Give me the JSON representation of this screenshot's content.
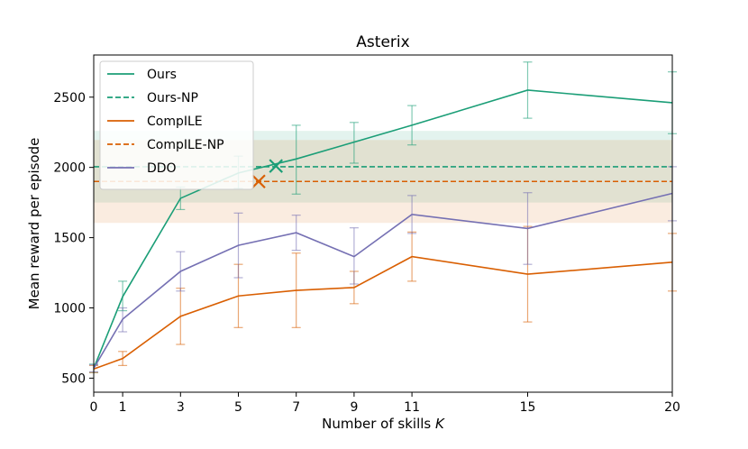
{
  "chart_data": {
    "type": "line",
    "title": "Asterix",
    "xlabel": "Number of skills K",
    "ylabel": "Mean reward per episode",
    "x": [
      0,
      1,
      3,
      5,
      7,
      9,
      11,
      15,
      20
    ],
    "xlim": [
      0,
      20
    ],
    "ylim": [
      400,
      2800
    ],
    "x_ticks": [
      "0",
      "1",
      "3",
      "5",
      "7",
      "9",
      "11",
      "15",
      "20"
    ],
    "y_ticks": [
      "500",
      "1000",
      "1500",
      "2000",
      "2500"
    ],
    "y_tick_values": [
      500,
      1000,
      1500,
      2000,
      2500
    ],
    "grid": false,
    "legend_position": "top-left",
    "series": [
      {
        "name": "Ours",
        "color": "#1b9e77",
        "style": "solid",
        "values": [
          570,
          1080,
          1780,
          1960,
          2060,
          2180,
          2300,
          2550,
          2460
        ],
        "err_low": [
          540,
          980,
          1700,
          1850,
          1810,
          2030,
          2160,
          2350,
          2240
        ],
        "err_high": [
          600,
          1190,
          1860,
          2080,
          2300,
          2320,
          2440,
          2750,
          2680
        ]
      },
      {
        "name": "Ours-NP",
        "color": "#1b9e77",
        "style": "dashed",
        "constant": 2005,
        "band": [
          1750,
          2260
        ],
        "marker_x": 6.3,
        "marker_y": 2010
      },
      {
        "name": "CompILE",
        "color": "#d95f02",
        "style": "solid",
        "values": [
          565,
          640,
          940,
          1085,
          1125,
          1145,
          1365,
          1240,
          1325
        ],
        "err_low": [
          540,
          590,
          740,
          860,
          860,
          1030,
          1190,
          900,
          1120
        ],
        "err_high": [
          590,
          690,
          1140,
          1310,
          1390,
          1260,
          1540,
          1580,
          1530
        ]
      },
      {
        "name": "CompILE-NP",
        "color": "#d95f02",
        "style": "dashed",
        "constant": 1900,
        "band": [
          1605,
          2195
        ],
        "marker_x": 5.7,
        "marker_y": 1900
      },
      {
        "name": "DDO",
        "color": "#7570b3",
        "style": "solid",
        "values": [
          570,
          920,
          1260,
          1445,
          1535,
          1365,
          1665,
          1565,
          1815
        ],
        "err_low": [
          545,
          830,
          1120,
          1215,
          1410,
          1170,
          1530,
          1310,
          1620
        ],
        "err_high": [
          595,
          1000,
          1400,
          1675,
          1660,
          1570,
          1800,
          1820,
          2005
        ]
      }
    ]
  }
}
